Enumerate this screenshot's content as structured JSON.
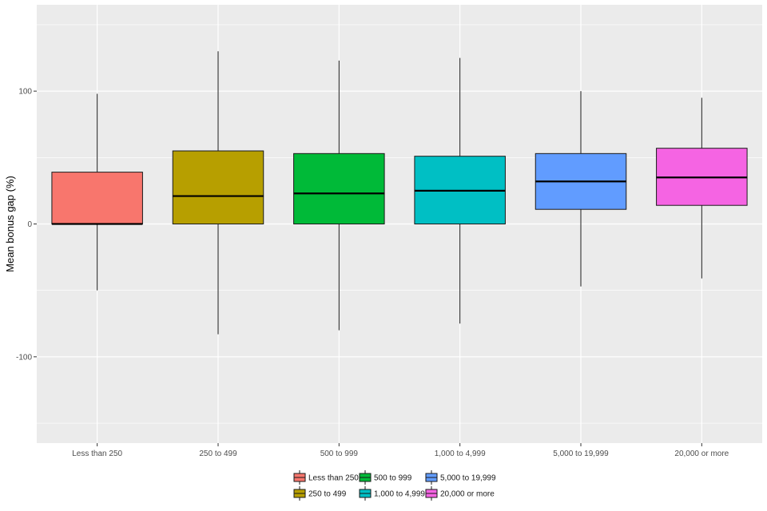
{
  "chart_data": {
    "type": "boxplot",
    "title": "",
    "xlabel": "",
    "ylabel": "Mean bonus gap (%)",
    "ylim": [
      -165,
      165
    ],
    "yticks": [
      -100,
      0,
      100
    ],
    "grid": true,
    "legend_position": "bottom",
    "categories": [
      "Less than 250",
      "250 to 499",
      "500 to 999",
      "1,000 to 4,999",
      "5,000 to 19,999",
      "20,000 or more"
    ],
    "colors": [
      "#F8766D",
      "#B79F00",
      "#00BA38",
      "#00BFC4",
      "#619CFF",
      "#F564E3"
    ],
    "boxes": [
      {
        "category": "Less than 250",
        "whisker_low": -50,
        "q1": 0,
        "median": 0,
        "q3": 39,
        "whisker_high": 98
      },
      {
        "category": "250 to 499",
        "whisker_low": -83,
        "q1": 0,
        "median": 21,
        "q3": 55,
        "whisker_high": 130
      },
      {
        "category": "500 to 999",
        "whisker_low": -80,
        "q1": 0,
        "median": 23,
        "q3": 53,
        "whisker_high": 123
      },
      {
        "category": "1,000 to 4,999",
        "whisker_low": -75,
        "q1": 0,
        "median": 25,
        "q3": 51,
        "whisker_high": 125
      },
      {
        "category": "5,000 to 19,999",
        "whisker_low": -47,
        "q1": 11,
        "median": 32,
        "q3": 53,
        "whisker_high": 100
      },
      {
        "category": "20,000 or more",
        "whisker_low": -41,
        "q1": 14,
        "median": 35,
        "q3": 57,
        "whisker_high": 95
      }
    ],
    "legend": [
      "Less than 250",
      "250 to 499",
      "500 to 999",
      "1,000 to 4,999",
      "5,000 to 19,999",
      "20,000 or more"
    ]
  }
}
